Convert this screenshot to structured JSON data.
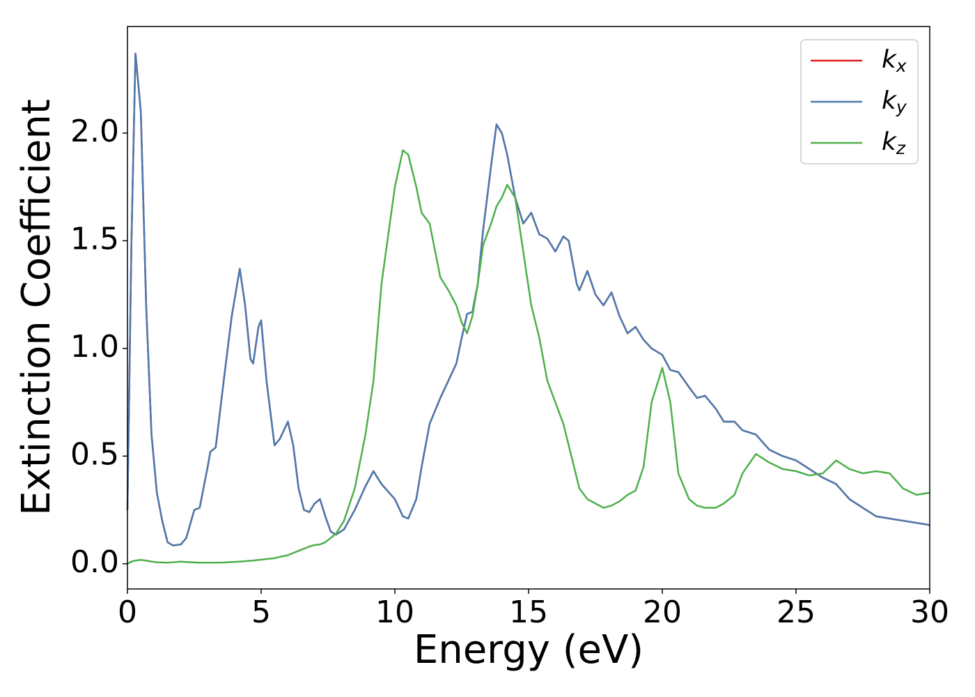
{
  "chart_data": {
    "type": "line",
    "xlabel": "Energy (eV)",
    "ylabel": "Extinction Coefficient",
    "x": [
      0,
      0.15,
      0.3,
      0.5,
      0.7,
      0.9,
      1.1,
      1.3,
      1.5,
      1.7,
      2.0,
      2.2,
      2.5,
      2.7,
      3.0,
      3.1,
      3.3,
      3.6,
      3.9,
      4.2,
      4.4,
      4.6,
      4.7,
      4.9,
      5.0,
      5.2,
      5.5,
      5.7,
      6.0,
      6.2,
      6.4,
      6.6,
      6.8,
      7.0,
      7.2,
      7.4,
      7.6,
      7.8,
      8.1,
      8.5,
      8.9,
      9.2,
      9.5,
      10.0,
      10.3,
      10.5,
      10.8,
      11.0,
      11.3,
      11.7,
      12.0,
      12.3,
      12.5,
      12.7,
      12.9,
      13.1,
      13.3,
      13.6,
      13.8,
      14.0,
      14.2,
      14.5,
      14.8,
      15.1,
      15.4,
      15.7,
      16.0,
      16.3,
      16.5,
      16.8,
      16.9,
      17.2,
      17.5,
      17.8,
      18.1,
      18.4,
      18.7,
      19.0,
      19.3,
      19.6,
      20.0,
      20.3,
      20.6,
      21.0,
      21.3,
      21.6,
      22.0,
      22.3,
      22.7,
      23.0,
      23.5,
      24.0,
      24.5,
      25.0,
      25.5,
      26.0,
      26.5,
      27.0,
      27.5,
      28.0,
      28.5,
      29.0,
      29.5,
      30.0
    ],
    "series": [
      {
        "name": "kx",
        "color": "#e41a1c",
        "values": [
          0.25,
          1.5,
          2.37,
          2.1,
          1.2,
          0.6,
          0.33,
          0.2,
          0.1,
          0.085,
          0.09,
          0.12,
          0.25,
          0.26,
          0.45,
          0.52,
          0.54,
          0.85,
          1.15,
          1.37,
          1.2,
          0.95,
          0.93,
          1.1,
          1.13,
          0.85,
          0.55,
          0.58,
          0.66,
          0.55,
          0.35,
          0.25,
          0.24,
          0.28,
          0.3,
          0.22,
          0.15,
          0.135,
          0.16,
          0.25,
          0.36,
          0.43,
          0.37,
          0.3,
          0.22,
          0.21,
          0.3,
          0.45,
          0.65,
          0.77,
          0.85,
          0.93,
          1.05,
          1.16,
          1.17,
          1.3,
          1.55,
          1.85,
          2.04,
          2.0,
          1.9,
          1.7,
          1.58,
          1.63,
          1.53,
          1.51,
          1.45,
          1.52,
          1.5,
          1.3,
          1.27,
          1.36,
          1.25,
          1.2,
          1.26,
          1.15,
          1.07,
          1.1,
          1.04,
          1.0,
          0.97,
          0.9,
          0.89,
          0.82,
          0.77,
          0.78,
          0.72,
          0.66,
          0.66,
          0.62,
          0.6,
          0.53,
          0.5,
          0.48,
          0.44,
          0.4,
          0.37,
          0.3,
          0.26,
          0.22,
          0.21,
          0.2,
          0.19,
          0.18
        ]
      },
      {
        "name": "ky",
        "color": "#4a7aae",
        "values": [
          0.25,
          1.5,
          2.37,
          2.1,
          1.2,
          0.6,
          0.33,
          0.2,
          0.1,
          0.085,
          0.09,
          0.12,
          0.25,
          0.26,
          0.45,
          0.52,
          0.54,
          0.85,
          1.15,
          1.37,
          1.2,
          0.95,
          0.93,
          1.1,
          1.13,
          0.85,
          0.55,
          0.58,
          0.66,
          0.55,
          0.35,
          0.25,
          0.24,
          0.28,
          0.3,
          0.22,
          0.15,
          0.135,
          0.16,
          0.25,
          0.36,
          0.43,
          0.37,
          0.3,
          0.22,
          0.21,
          0.3,
          0.45,
          0.65,
          0.77,
          0.85,
          0.93,
          1.05,
          1.16,
          1.17,
          1.3,
          1.55,
          1.85,
          2.04,
          2.0,
          1.9,
          1.7,
          1.58,
          1.63,
          1.53,
          1.51,
          1.45,
          1.52,
          1.5,
          1.3,
          1.27,
          1.36,
          1.25,
          1.2,
          1.26,
          1.15,
          1.07,
          1.1,
          1.04,
          1.0,
          0.97,
          0.9,
          0.89,
          0.82,
          0.77,
          0.78,
          0.72,
          0.66,
          0.66,
          0.62,
          0.6,
          0.53,
          0.5,
          0.48,
          0.44,
          0.4,
          0.37,
          0.3,
          0.26,
          0.22,
          0.21,
          0.2,
          0.19,
          0.18
        ]
      },
      {
        "name": "kz",
        "color": "#4daf4a",
        "values": [
          0.0,
          0.01,
          0.015,
          0.018,
          0.015,
          0.01,
          0.007,
          0.006,
          0.005,
          0.007,
          0.01,
          0.008,
          0.006,
          0.005,
          0.005,
          0.005,
          0.005,
          0.006,
          0.008,
          0.01,
          0.012,
          0.014,
          0.015,
          0.018,
          0.019,
          0.022,
          0.026,
          0.032,
          0.04,
          0.05,
          0.06,
          0.07,
          0.08,
          0.087,
          0.09,
          0.1,
          0.12,
          0.14,
          0.2,
          0.35,
          0.6,
          0.85,
          1.3,
          1.75,
          1.92,
          1.9,
          1.75,
          1.63,
          1.58,
          1.33,
          1.27,
          1.2,
          1.12,
          1.07,
          1.15,
          1.3,
          1.48,
          1.58,
          1.66,
          1.7,
          1.76,
          1.7,
          1.45,
          1.2,
          1.05,
          0.85,
          0.75,
          0.65,
          0.55,
          0.4,
          0.35,
          0.3,
          0.28,
          0.26,
          0.27,
          0.29,
          0.32,
          0.34,
          0.45,
          0.75,
          0.91,
          0.75,
          0.42,
          0.3,
          0.27,
          0.26,
          0.26,
          0.28,
          0.32,
          0.42,
          0.51,
          0.47,
          0.44,
          0.43,
          0.41,
          0.42,
          0.48,
          0.44,
          0.42,
          0.43,
          0.42,
          0.35,
          0.32,
          0.33
        ]
      }
    ],
    "xlim": [
      0,
      30
    ],
    "xticks": [
      0,
      5,
      10,
      15,
      20,
      25,
      30
    ],
    "ylim": [
      -0.117,
      2.495
    ],
    "yticks": [
      {
        "value": 0,
        "label": "0.0"
      },
      {
        "value": 0.5,
        "label": "0.5"
      },
      {
        "value": 1,
        "label": "1.0"
      },
      {
        "value": 1.5,
        "label": "1.5"
      },
      {
        "value": 2,
        "label": "2.0"
      }
    ],
    "grid": false,
    "legend": "upper right"
  }
}
